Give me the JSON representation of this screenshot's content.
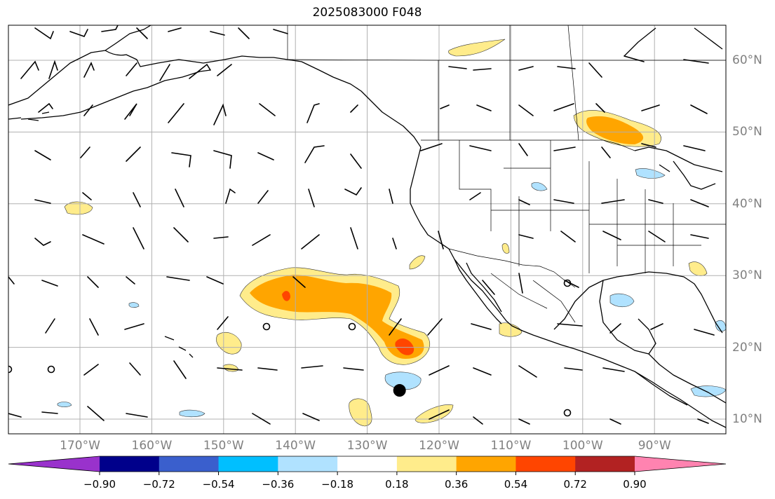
{
  "title": "2025083000 F048",
  "lat_labels": [
    {
      "text": "60°N",
      "lat": 60
    },
    {
      "text": "50°N",
      "lat": 50
    },
    {
      "text": "40°N",
      "lat": 40
    },
    {
      "text": "30°N",
      "lat": 30
    },
    {
      "text": "20°N",
      "lat": 20
    },
    {
      "text": "10°N",
      "lat": 10
    }
  ],
  "lon_labels": [
    {
      "text": "170°W",
      "lon": -170
    },
    {
      "text": "160°W",
      "lon": -160
    },
    {
      "text": "150°W",
      "lon": -150
    },
    {
      "text": "140°W",
      "lon": -140
    },
    {
      "text": "130°W",
      "lon": -130
    },
    {
      "text": "120°W",
      "lon": -120
    },
    {
      "text": "110°W",
      "lon": -110
    },
    {
      "text": "100°W",
      "lon": -100
    },
    {
      "text": "90°W",
      "lon": -90
    }
  ],
  "colorbar": {
    "colors": [
      "#9932cc",
      "#00008b",
      "#3a5fcd",
      "#00bfff",
      "#b0e2ff",
      "#ffffff",
      "#ffec8b",
      "#ffa500",
      "#ff4500",
      "#b22222",
      "#ff83b0"
    ],
    "labels": [
      "−0.90",
      "−0.72",
      "−0.54",
      "−0.36",
      "−0.18",
      "0.18",
      "0.36",
      "0.54",
      "0.72",
      "0.90"
    ]
  },
  "tropical_cyclone_marker": {
    "lon": -125.5,
    "lat": 14
  }
}
